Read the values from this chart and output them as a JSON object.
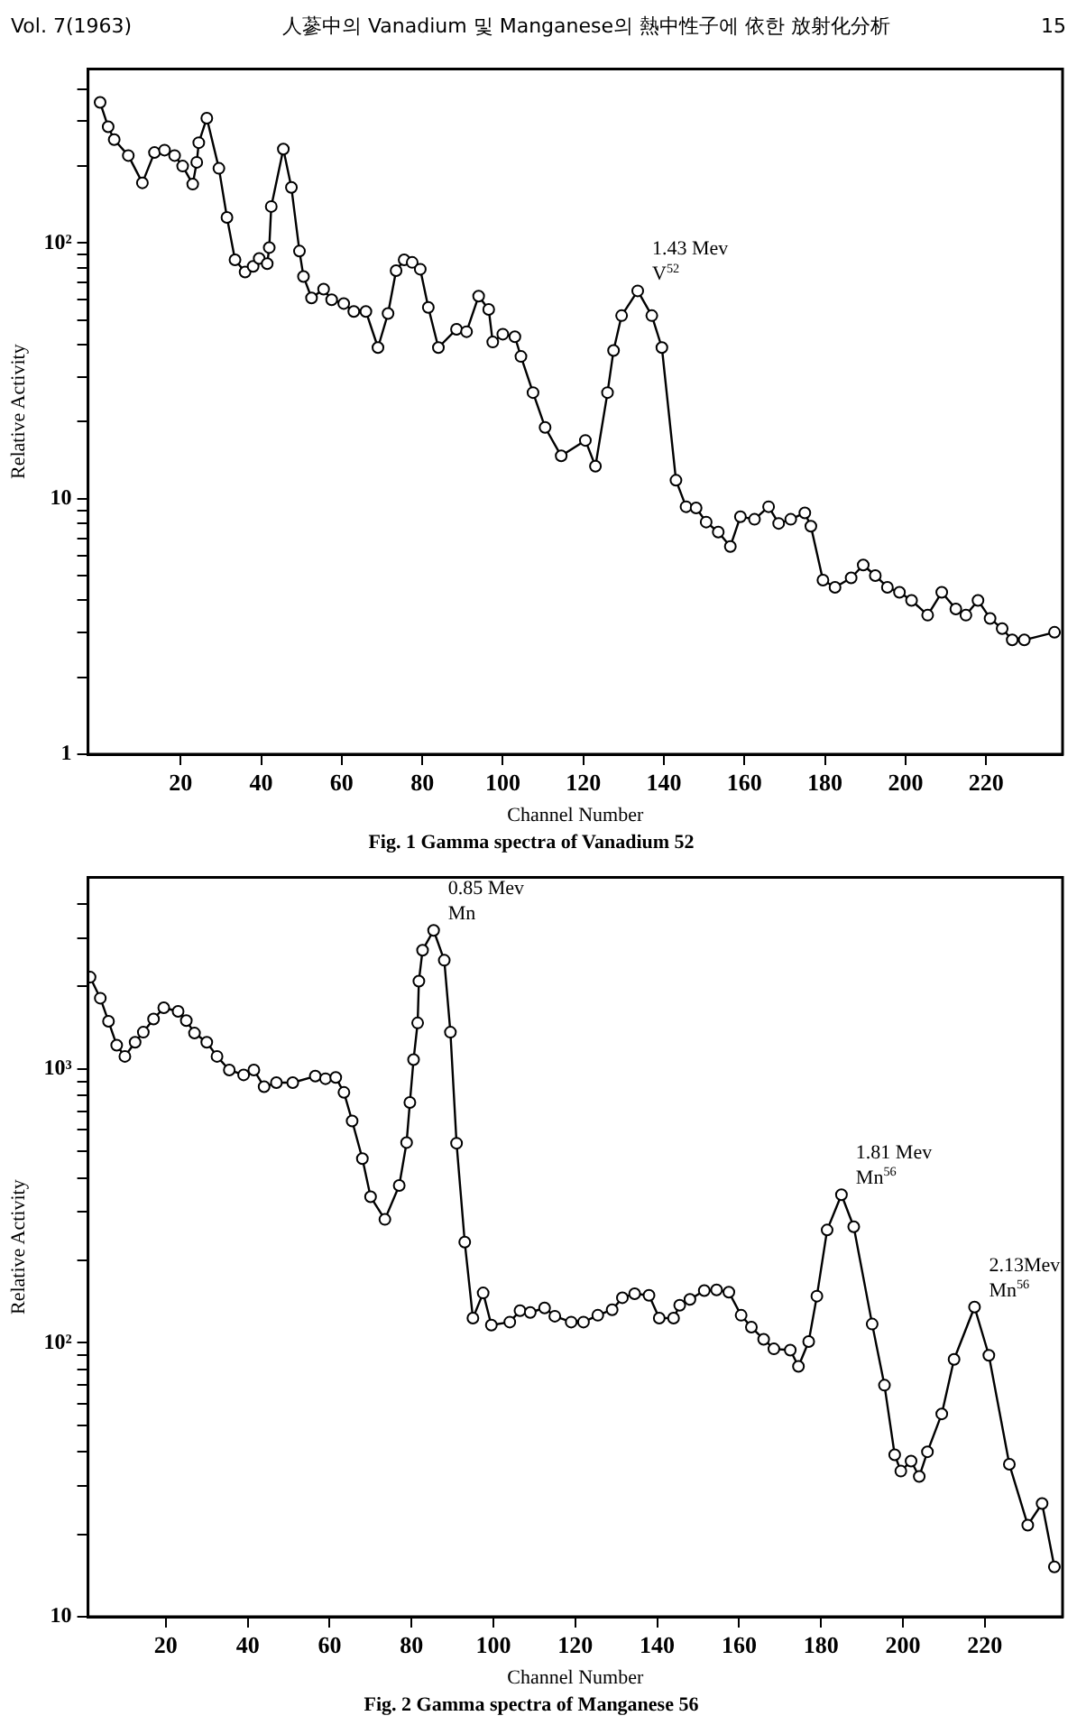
{
  "chart_data": [
    {
      "type": "line",
      "title": "Fig. 1 Gamma spectra of Vanadium 52",
      "xlabel": "Channel Number",
      "ylabel": "Relative Activity",
      "log": "y",
      "marker": "circle",
      "annotations": [
        "Vol. 7(1963)",
        "人蔘中의 Vanadium 및 Manganese의 熱中性子에 依한 放射化分析",
        "15",
        {
          "text": "1.43 Mev V$^{52}$",
          "x": 133.5,
          "y": 65
        }
      ],
      "xlim": [
        -3,
        239
      ],
      "xticks": [
        20,
        40,
        60,
        80,
        100,
        120,
        140,
        160,
        180,
        200,
        220
      ],
      "ylim": [
        1,
        480
      ],
      "yticks": [
        {
          "value": 1,
          "label": "1"
        },
        {
          "value": 2,
          "label": null
        },
        {
          "value": 3,
          "label": null
        },
        {
          "value": 4,
          "label": null
        },
        {
          "value": 5,
          "label": null
        },
        {
          "value": 6,
          "label": null
        },
        {
          "value": 7,
          "label": null
        },
        {
          "value": 8,
          "label": null
        },
        {
          "value": 9,
          "label": null
        },
        {
          "value": 10,
          "label": "10"
        },
        {
          "value": 20,
          "label": null
        },
        {
          "value": 30,
          "label": null
        },
        {
          "value": 40,
          "label": null
        },
        {
          "value": 50,
          "label": null
        },
        {
          "value": 60,
          "label": null
        },
        {
          "value": 70,
          "label": null
        },
        {
          "value": 80,
          "label": null
        },
        {
          "value": 90,
          "label": null
        },
        {
          "value": 100,
          "label": "10²"
        },
        {
          "value": 200,
          "label": null
        },
        {
          "value": 300,
          "label": null
        },
        {
          "value": 400,
          "label": null
        }
      ],
      "series": [
        {
          "color": "#000000",
          "x": [
            0,
            2,
            3.5,
            7,
            10.5,
            13.5,
            16,
            18.5,
            20.5,
            23,
            24,
            24.5,
            26.5,
            29.5,
            31.5,
            33.5,
            36,
            38,
            39.5,
            41.5,
            42,
            42.5,
            45.5,
            47.5,
            49.5,
            50.5,
            52.5,
            55.5,
            57.5,
            60.5,
            63,
            66,
            69,
            71.5,
            73.5,
            75.5,
            77.5,
            79.5,
            81.5,
            84,
            88.5,
            91,
            94,
            96.5,
            97.5,
            100,
            103,
            104.5,
            107.5,
            110.5,
            114.5,
            120.5,
            123,
            126,
            127.5,
            129.5,
            133.5,
            137,
            139.5,
            143,
            145.5,
            148,
            150.5,
            153.5,
            156.5,
            159,
            162.5,
            166,
            168.5,
            171.5,
            175,
            176.5,
            179.5,
            182.5,
            186.5,
            189.5,
            192.5,
            195.5,
            198.5,
            201.5,
            205.5,
            209,
            212.5,
            215,
            218,
            221,
            224,
            226.5,
            229.5,
            237
          ],
          "values": [
            355,
            285,
            254,
            220,
            172,
            226,
            231,
            220,
            200,
            170,
            207,
            247,
            308,
            196,
            126,
            86,
            77,
            81,
            87,
            83,
            96,
            139,
            233,
            165,
            93,
            74,
            61,
            66,
            60,
            58,
            54,
            54,
            39,
            53,
            78,
            86,
            84,
            79,
            56,
            39,
            46,
            45,
            62,
            55,
            41,
            44,
            43,
            36,
            26,
            19,
            14.7,
            16.9,
            13.4,
            26,
            38,
            52,
            65,
            52,
            39,
            11.8,
            9.3,
            9.2,
            8.1,
            7.4,
            6.5,
            8.5,
            8.3,
            9.3,
            8.0,
            8.3,
            8.8,
            7.8,
            4.8,
            4.5,
            4.9,
            5.5,
            5.0,
            4.5,
            4.3,
            4.0,
            3.5,
            4.3,
            3.7,
            3.5,
            4.0,
            3.4,
            3.1,
            2.8,
            2.8,
            3.0
          ]
        }
      ]
    },
    {
      "type": "line",
      "title": "Fig. 2 Gamma spectra of Manganese 56",
      "xlabel": "Channel Number",
      "ylabel": "Relative Activity",
      "log": "y",
      "marker": "circle",
      "annotations": [
        {
          "text": "0.85 Mev Mn",
          "x": 85.4,
          "y": 3200
        },
        {
          "text": "1.81 Mev Mn$^{56}$",
          "x": 185,
          "y": 347
        },
        {
          "text": "2.13Mev Mn$^{56}$",
          "x": 217.5,
          "y": 135
        }
      ],
      "xlim": [
        1,
        239
      ],
      "xticks": [
        20,
        40,
        60,
        80,
        100,
        120,
        140,
        160,
        180,
        200,
        220
      ],
      "ylim": [
        10,
        5000
      ],
      "yticks": [
        {
          "value": 10,
          "label": "10"
        },
        {
          "value": 20,
          "label": null
        },
        {
          "value": 30,
          "label": null
        },
        {
          "value": 40,
          "label": null
        },
        {
          "value": 50,
          "label": null
        },
        {
          "value": 60,
          "label": null
        },
        {
          "value": 70,
          "label": null
        },
        {
          "value": 80,
          "label": null
        },
        {
          "value": 90,
          "label": null
        },
        {
          "value": 100,
          "label": "10²"
        },
        {
          "value": 200,
          "label": null
        },
        {
          "value": 300,
          "label": null
        },
        {
          "value": 400,
          "label": null
        },
        {
          "value": 500,
          "label": null
        },
        {
          "value": 600,
          "label": null
        },
        {
          "value": 700,
          "label": null
        },
        {
          "value": 800,
          "label": null
        },
        {
          "value": 900,
          "label": null
        },
        {
          "value": 1000,
          "label": "10³"
        },
        {
          "value": 2000,
          "label": null
        },
        {
          "value": 3000,
          "label": null
        },
        {
          "value": 4000,
          "label": null
        }
      ],
      "series": [
        {
          "color": "#000000",
          "x": [
            1.5,
            4,
            6,
            8,
            10,
            12.5,
            14.5,
            17,
            19.5,
            23,
            25,
            27,
            30,
            32.5,
            35.5,
            39,
            41.5,
            44,
            47,
            51,
            56.5,
            59,
            61.5,
            63.5,
            65.5,
            68,
            70,
            73.5,
            77,
            78.8,
            79.6,
            80.5,
            81.5,
            81.8,
            82.7,
            85.4,
            88,
            89.5,
            91,
            93,
            95,
            97.5,
            99.5,
            104,
            106.5,
            109,
            112.5,
            115,
            119,
            122,
            125.5,
            129,
            131.5,
            134.5,
            138,
            140.5,
            144,
            145.5,
            148,
            151.5,
            154.5,
            157.5,
            160.5,
            163,
            166,
            168.5,
            172.5,
            174.5,
            177,
            179,
            181.5,
            185,
            188,
            192.5,
            195.5,
            198,
            199.5,
            202,
            204,
            206,
            209.5,
            212.5,
            217.5,
            221,
            226,
            230.5,
            234,
            237
          ],
          "values": [
            2160,
            1810,
            1490,
            1220,
            1110,
            1250,
            1360,
            1520,
            1670,
            1620,
            1500,
            1350,
            1250,
            1110,
            990,
            950,
            990,
            860,
            890,
            890,
            940,
            920,
            930,
            820,
            645,
            470,
            341,
            282,
            375,
            538,
            753,
            1080,
            1470,
            2090,
            2710,
            3200,
            2490,
            1360,
            535,
            233,
            123,
            152,
            116,
            119,
            131,
            129,
            134,
            125,
            119,
            119,
            126,
            132,
            146,
            151,
            149,
            123,
            123,
            137,
            144,
            155,
            156,
            153,
            126,
            114,
            103,
            95,
            94,
            82,
            101,
            148,
            258,
            347,
            265,
            117,
            70,
            39,
            34,
            37,
            32.5,
            40,
            55,
            87,
            135,
            90,
            36,
            21.6,
            25.9,
            15.2
          ]
        }
      ]
    }
  ]
}
